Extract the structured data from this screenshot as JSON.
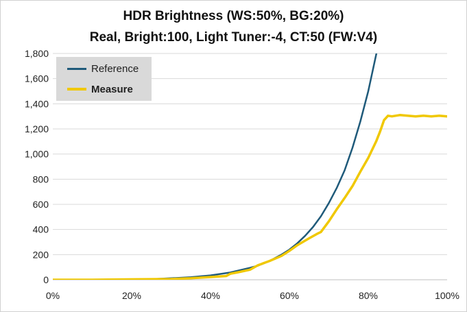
{
  "chart_data": {
    "type": "line",
    "title": "HDR Brightness (WS:50%, BG:20%)",
    "subtitle": "Real, Bright:100, Light Tuner:-4, CT:50 (FW:V4)",
    "xlabel": "",
    "ylabel": "",
    "x_tick_labels": [
      "0%",
      "20%",
      "40%",
      "60%",
      "80%",
      "100%"
    ],
    "y_tick_labels": [
      "0",
      "200",
      "400",
      "600",
      "800",
      "1,000",
      "1,200",
      "1,400",
      "1,600",
      "1,800"
    ],
    "xlim": [
      0,
      100
    ],
    "ylim": [
      0,
      1800
    ],
    "x_ticks": [
      0,
      20,
      40,
      60,
      80,
      100
    ],
    "y_ticks": [
      0,
      200,
      400,
      600,
      800,
      1000,
      1200,
      1400,
      1600,
      1800
    ],
    "grid": "horizontal",
    "legend": "top-left",
    "series": [
      {
        "name": "Reference",
        "color": "#1f5a7a",
        "x": [
          0,
          10,
          20,
          25,
          30,
          35,
          40,
          45,
          50,
          52,
          55,
          58,
          60,
          62,
          64,
          66,
          68,
          70,
          72,
          74,
          76,
          78,
          80,
          82,
          84
        ],
        "y": [
          0,
          0.5,
          2,
          5,
          12,
          20,
          35,
          58,
          95,
          112,
          150,
          200,
          240,
          290,
          350,
          420,
          505,
          610,
          730,
          870,
          1050,
          1260,
          1500,
          1790,
          2100
        ]
      },
      {
        "name": "Measure",
        "color": "#f0c800",
        "x": [
          0,
          10,
          20,
          25,
          30,
          35,
          40,
          44,
          45,
          47,
          50,
          52,
          55,
          58,
          60,
          62,
          65,
          67,
          68,
          70,
          72,
          74,
          76,
          78,
          80,
          82,
          83,
          84,
          85,
          86,
          88,
          90,
          92,
          94,
          96,
          98,
          100
        ],
        "y": [
          0,
          0,
          3,
          5,
          6,
          12,
          22,
          30,
          48,
          60,
          80,
          115,
          150,
          190,
          230,
          275,
          330,
          365,
          380,
          465,
          560,
          650,
          745,
          860,
          970,
          1100,
          1180,
          1270,
          1305,
          1300,
          1310,
          1305,
          1300,
          1305,
          1300,
          1305,
          1300
        ]
      }
    ]
  }
}
